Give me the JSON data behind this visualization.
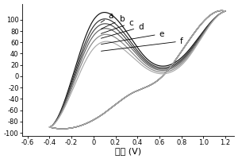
{
  "xlabel": "电压 (V)",
  "xlim": [
    -0.65,
    1.28
  ],
  "ylim": [
    -105,
    128
  ],
  "yticks": [
    -100,
    -80,
    -60,
    -40,
    -20,
    0,
    20,
    40,
    60,
    80,
    100
  ],
  "xticks": [
    -0.6,
    -0.4,
    -0.2,
    0.0,
    0.2,
    0.4,
    0.6,
    0.8,
    1.0,
    1.2
  ],
  "xtick_labels": [
    "-0.6",
    "-0.4",
    "-0.2",
    "0",
    "0.2",
    "0.4",
    "0.6",
    "0.8",
    "1.0",
    "1.2"
  ],
  "ytick_labels": [
    "-100",
    "-80",
    "-60",
    "-40",
    "-20",
    "0",
    "20",
    "40",
    "60",
    "80",
    "100"
  ],
  "labels": [
    "a",
    "b",
    "c",
    "d",
    "e",
    "f"
  ],
  "peak_heights": [
    93,
    82,
    74,
    66,
    56,
    44
  ],
  "min_heights": [
    32,
    28,
    25,
    22,
    18,
    14
  ],
  "trough_depths": [
    -30,
    -30,
    -30,
    -30,
    -30,
    -30
  ],
  "line_colors": [
    "#111111",
    "#333333",
    "#4a4a4a",
    "#666666",
    "#888888",
    "#aaaaaa"
  ],
  "background_color": "#ffffff",
  "ann_xy": [
    [
      0.16,
      107
    ],
    [
      0.26,
      101
    ],
    [
      0.34,
      94
    ],
    [
      0.43,
      87
    ],
    [
      0.62,
      75
    ],
    [
      0.8,
      62
    ]
  ]
}
